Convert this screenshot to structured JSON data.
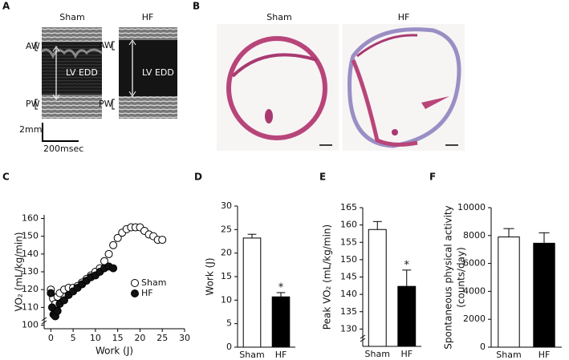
{
  "figure": {
    "panels": [
      "A",
      "B",
      "C",
      "D",
      "E",
      "F"
    ],
    "echo": {
      "sham": {
        "title": "Sham",
        "aw": "AW",
        "pw": "PW",
        "dimension": "LV EDD"
      },
      "hf": {
        "title": "HF",
        "aw": "AW",
        "pw": "PW",
        "dimension": "LV EDD"
      },
      "scale_y": "2mm",
      "scale_x": "200msec"
    },
    "histology": {
      "sham": "Sham",
      "hf": "HF"
    }
  },
  "chart_data": [
    {
      "type": "scatter",
      "xlabel": "Work (J)",
      "ylabel": "VO₂ (mL/kg/min)",
      "xlim": [
        -1.5,
        30
      ],
      "xticks": [
        0,
        5,
        10,
        15,
        20,
        25,
        30
      ],
      "ylim": [
        98,
        162
      ],
      "yticks": [
        100,
        110,
        120,
        130,
        140,
        150,
        160
      ],
      "y_axis_break": true,
      "legend": "center right",
      "series": [
        {
          "name": "Sham",
          "color": "#ffffff",
          "x": [
            0,
            0.5,
            1,
            1.5,
            2,
            3,
            4,
            5,
            6,
            7,
            8,
            9,
            10,
            11,
            12,
            13,
            14,
            15,
            16,
            17,
            18,
            19,
            20,
            21,
            22,
            23,
            24,
            25
          ],
          "values": [
            120,
            115,
            112,
            116,
            118,
            120,
            121,
            121,
            122,
            124,
            126,
            128,
            130,
            132,
            136,
            140,
            145,
            149,
            152,
            154,
            155,
            155,
            155,
            153,
            151,
            150,
            148,
            148
          ]
        },
        {
          "name": "HF",
          "color": "#111111",
          "x": [
            0,
            0.3,
            0.6,
            1,
            1.5,
            2,
            3,
            4,
            5,
            6,
            7,
            8,
            9,
            10,
            11,
            12,
            13,
            14
          ],
          "values": [
            118,
            110,
            106,
            105,
            108,
            112,
            114,
            117,
            119,
            121,
            123,
            125,
            127,
            128,
            130,
            132,
            133,
            132
          ]
        }
      ]
    },
    {
      "type": "bar",
      "ylabel": [
        "Work (J)"
      ],
      "categories": [
        "Sham",
        "HF"
      ],
      "values": [
        23.2,
        10.7
      ],
      "errors": [
        0.8,
        0.9
      ],
      "colors": [
        "#ffffff",
        "#000000"
      ],
      "significance": [
        null,
        "*"
      ],
      "ylim": [
        0,
        30
      ],
      "yticks": [
        0,
        5,
        10,
        15,
        20,
        25,
        30
      ],
      "y_axis_break": false
    },
    {
      "type": "bar",
      "ylabel": [
        "Peak VO₂ (mL/kg/min)"
      ],
      "categories": [
        "Sham",
        "HF"
      ],
      "values": [
        158.7,
        142.3
      ],
      "errors": [
        2.3,
        4.7
      ],
      "colors": [
        "#ffffff",
        "#000000"
      ],
      "significance": [
        null,
        "*"
      ],
      "ylim": [
        125,
        165
      ],
      "yticks": [
        130,
        135,
        140,
        145,
        150,
        155,
        160,
        165
      ],
      "y_axis_break": true
    },
    {
      "type": "bar",
      "ylabel": [
        "Spontaneous physical activity",
        "(counts/day)"
      ],
      "categories": [
        "Sham",
        "HF"
      ],
      "values": [
        7900,
        7450
      ],
      "errors": [
        600,
        750
      ],
      "colors": [
        "#ffffff",
        "#000000"
      ],
      "significance": [
        null,
        null
      ],
      "ylim": [
        0,
        10000
      ],
      "yticks": [
        0,
        2000,
        4000,
        6000,
        8000,
        10000
      ],
      "y_axis_break": false
    }
  ]
}
